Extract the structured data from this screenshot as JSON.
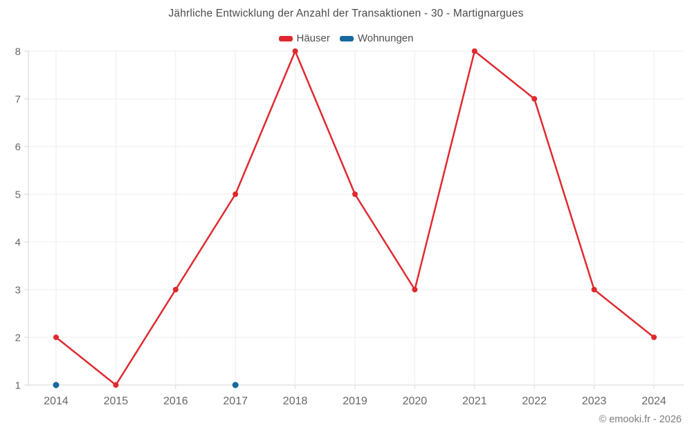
{
  "chart_data": {
    "type": "line",
    "title": "Jährliche Entwicklung der Anzahl der Transaktionen - 30 - Martignargues",
    "x": [
      "2014",
      "2015",
      "2016",
      "2017",
      "2018",
      "2019",
      "2020",
      "2021",
      "2022",
      "2023",
      "2024"
    ],
    "xlabel": "",
    "ylabel": "",
    "ylim": [
      1,
      8
    ],
    "yticks": [
      1,
      2,
      3,
      4,
      5,
      6,
      7,
      8
    ],
    "grid": true,
    "legend_position": "top",
    "series": [
      {
        "name": "Häuser",
        "color": "#e0282e",
        "show_line": true,
        "marker_radius": 4,
        "values": [
          2,
          1,
          3,
          5,
          8,
          5,
          3,
          8,
          7,
          3,
          2
        ]
      },
      {
        "name": "Wohnungen",
        "color": "#17699e",
        "show_line": false,
        "marker_radius": 4.5,
        "values": [
          1,
          null,
          null,
          1,
          null,
          null,
          null,
          null,
          null,
          null,
          null
        ]
      }
    ]
  },
  "footer": {
    "copyright": "© emooki.fr - 2026"
  },
  "style": {
    "background": "#ffffff",
    "grid_color": "#ececec",
    "axis_color": "#d6d6d6",
    "tick_color": "#d9d9d9",
    "axis_text_color": "#666666",
    "title_color": "#4a4a4a",
    "legend_text_color": "#4f4f4f",
    "footer_color": "#7d7d7d"
  }
}
